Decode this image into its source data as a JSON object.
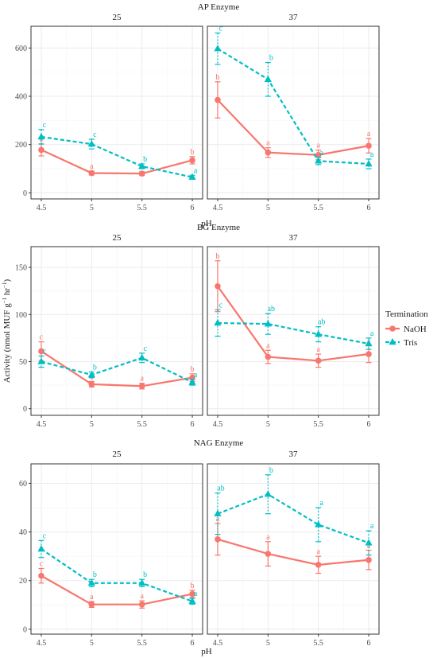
{
  "colors": {
    "NaOH": "#F8766D",
    "Tris": "#00BFC4"
  },
  "x_axis_label": "pH",
  "y_axis_label_main": "Activity (nmol MUF g",
  "y_axis_label_sup1": "−1",
  "y_axis_label_mid": " hr",
  "y_axis_label_sup2": "−1",
  "y_axis_label_end": ")",
  "legend": {
    "title": "Termination",
    "entries": [
      "NaOH",
      "Tris"
    ]
  },
  "chart_data": [
    {
      "type": "line",
      "title": "AP Enzyme",
      "x": [
        "4.5",
        "5",
        "5.5",
        "6"
      ],
      "ylim": [
        -25,
        690
      ],
      "yticks": [
        0,
        200,
        400,
        600
      ],
      "panels": [
        {
          "label": "25",
          "series": [
            {
              "name": "NaOH",
              "values": [
                178,
                82,
                80,
                135
              ],
              "errors": [
                25,
                8,
                8,
                15
              ],
              "letters": [
                "a",
                "a",
                "a",
                "b"
              ]
            },
            {
              "name": "Tris",
              "values": [
                232,
                202,
                110,
                65
              ],
              "errors": [
                30,
                20,
                10,
                8
              ],
              "letters": [
                "c",
                "c",
                "b",
                "a"
              ]
            }
          ]
        },
        {
          "label": "37",
          "series": [
            {
              "name": "NaOH",
              "values": [
                385,
                167,
                157,
                195
              ],
              "errors": [
                75,
                20,
                20,
                30
              ],
              "letters": [
                "b",
                "a",
                "a",
                "a"
              ]
            },
            {
              "name": "Tris",
              "values": [
                597,
                470,
                132,
                120
              ],
              "errors": [
                65,
                70,
                15,
                20
              ],
              "letters": [
                "c",
                "b",
                "a",
                "a"
              ]
            }
          ]
        }
      ]
    },
    {
      "type": "line",
      "title": "BG Enzyme",
      "x": [
        "4.5",
        "5",
        "5.5",
        "6"
      ],
      "ylim": [
        -7,
        172
      ],
      "yticks": [
        0,
        50,
        100,
        150
      ],
      "panels": [
        {
          "label": "25",
          "series": [
            {
              "name": "NaOH",
              "values": [
                61,
                26,
                24,
                33
              ],
              "errors": [
                10,
                3,
                3,
                4
              ],
              "letters": [
                "c",
                "a",
                "a",
                "b"
              ]
            },
            {
              "name": "Tris",
              "values": [
                50,
                36,
                54,
                28
              ],
              "errors": [
                6,
                3,
                5,
                3
              ],
              "letters": [
                "c",
                "b",
                "c",
                "a"
              ]
            }
          ]
        },
        {
          "label": "37",
          "series": [
            {
              "name": "NaOH",
              "values": [
                130,
                55,
                51,
                58
              ],
              "errors": [
                27,
                7,
                7,
                9
              ],
              "letters": [
                "b",
                "a",
                "a",
                "a"
              ]
            },
            {
              "name": "Tris",
              "values": [
                91,
                90,
                79,
                69
              ],
              "errors": [
                14,
                11,
                8,
                6
              ],
              "letters": [
                "c",
                "ab",
                "ab",
                "a"
              ]
            }
          ]
        }
      ]
    },
    {
      "type": "line",
      "title": "NAG Enzyme",
      "x": [
        "4.5",
        "5",
        "5.5",
        "6"
      ],
      "ylim": [
        -2,
        68
      ],
      "yticks": [
        0,
        20,
        40,
        60
      ],
      "panels": [
        {
          "label": "25",
          "series": [
            {
              "name": "NaOH",
              "values": [
                22,
                10.2,
                10.2,
                14.5
              ],
              "errors": [
                3,
                1.2,
                1.5,
                1.5
              ],
              "letters": [
                "c",
                "a",
                "a",
                "b"
              ]
            },
            {
              "name": "Tris",
              "values": [
                33,
                19,
                19,
                11.5
              ],
              "errors": [
                3.5,
                1.5,
                1.5,
                1.2
              ],
              "letters": [
                "c",
                "b",
                "b",
                "a"
              ]
            }
          ]
        },
        {
          "label": "37",
          "series": [
            {
              "name": "NaOH",
              "values": [
                37,
                31,
                26.5,
                28.5
              ],
              "errors": [
                6.5,
                5,
                3.5,
                4
              ],
              "letters": [
                "a",
                "a",
                "a",
                "a"
              ]
            },
            {
              "name": "Tris",
              "values": [
                47.5,
                55.5,
                43,
                35.5
              ],
              "errors": [
                8.5,
                8,
                7,
                5
              ],
              "letters": [
                "ab",
                "b",
                "a",
                "a"
              ]
            }
          ]
        }
      ]
    }
  ]
}
